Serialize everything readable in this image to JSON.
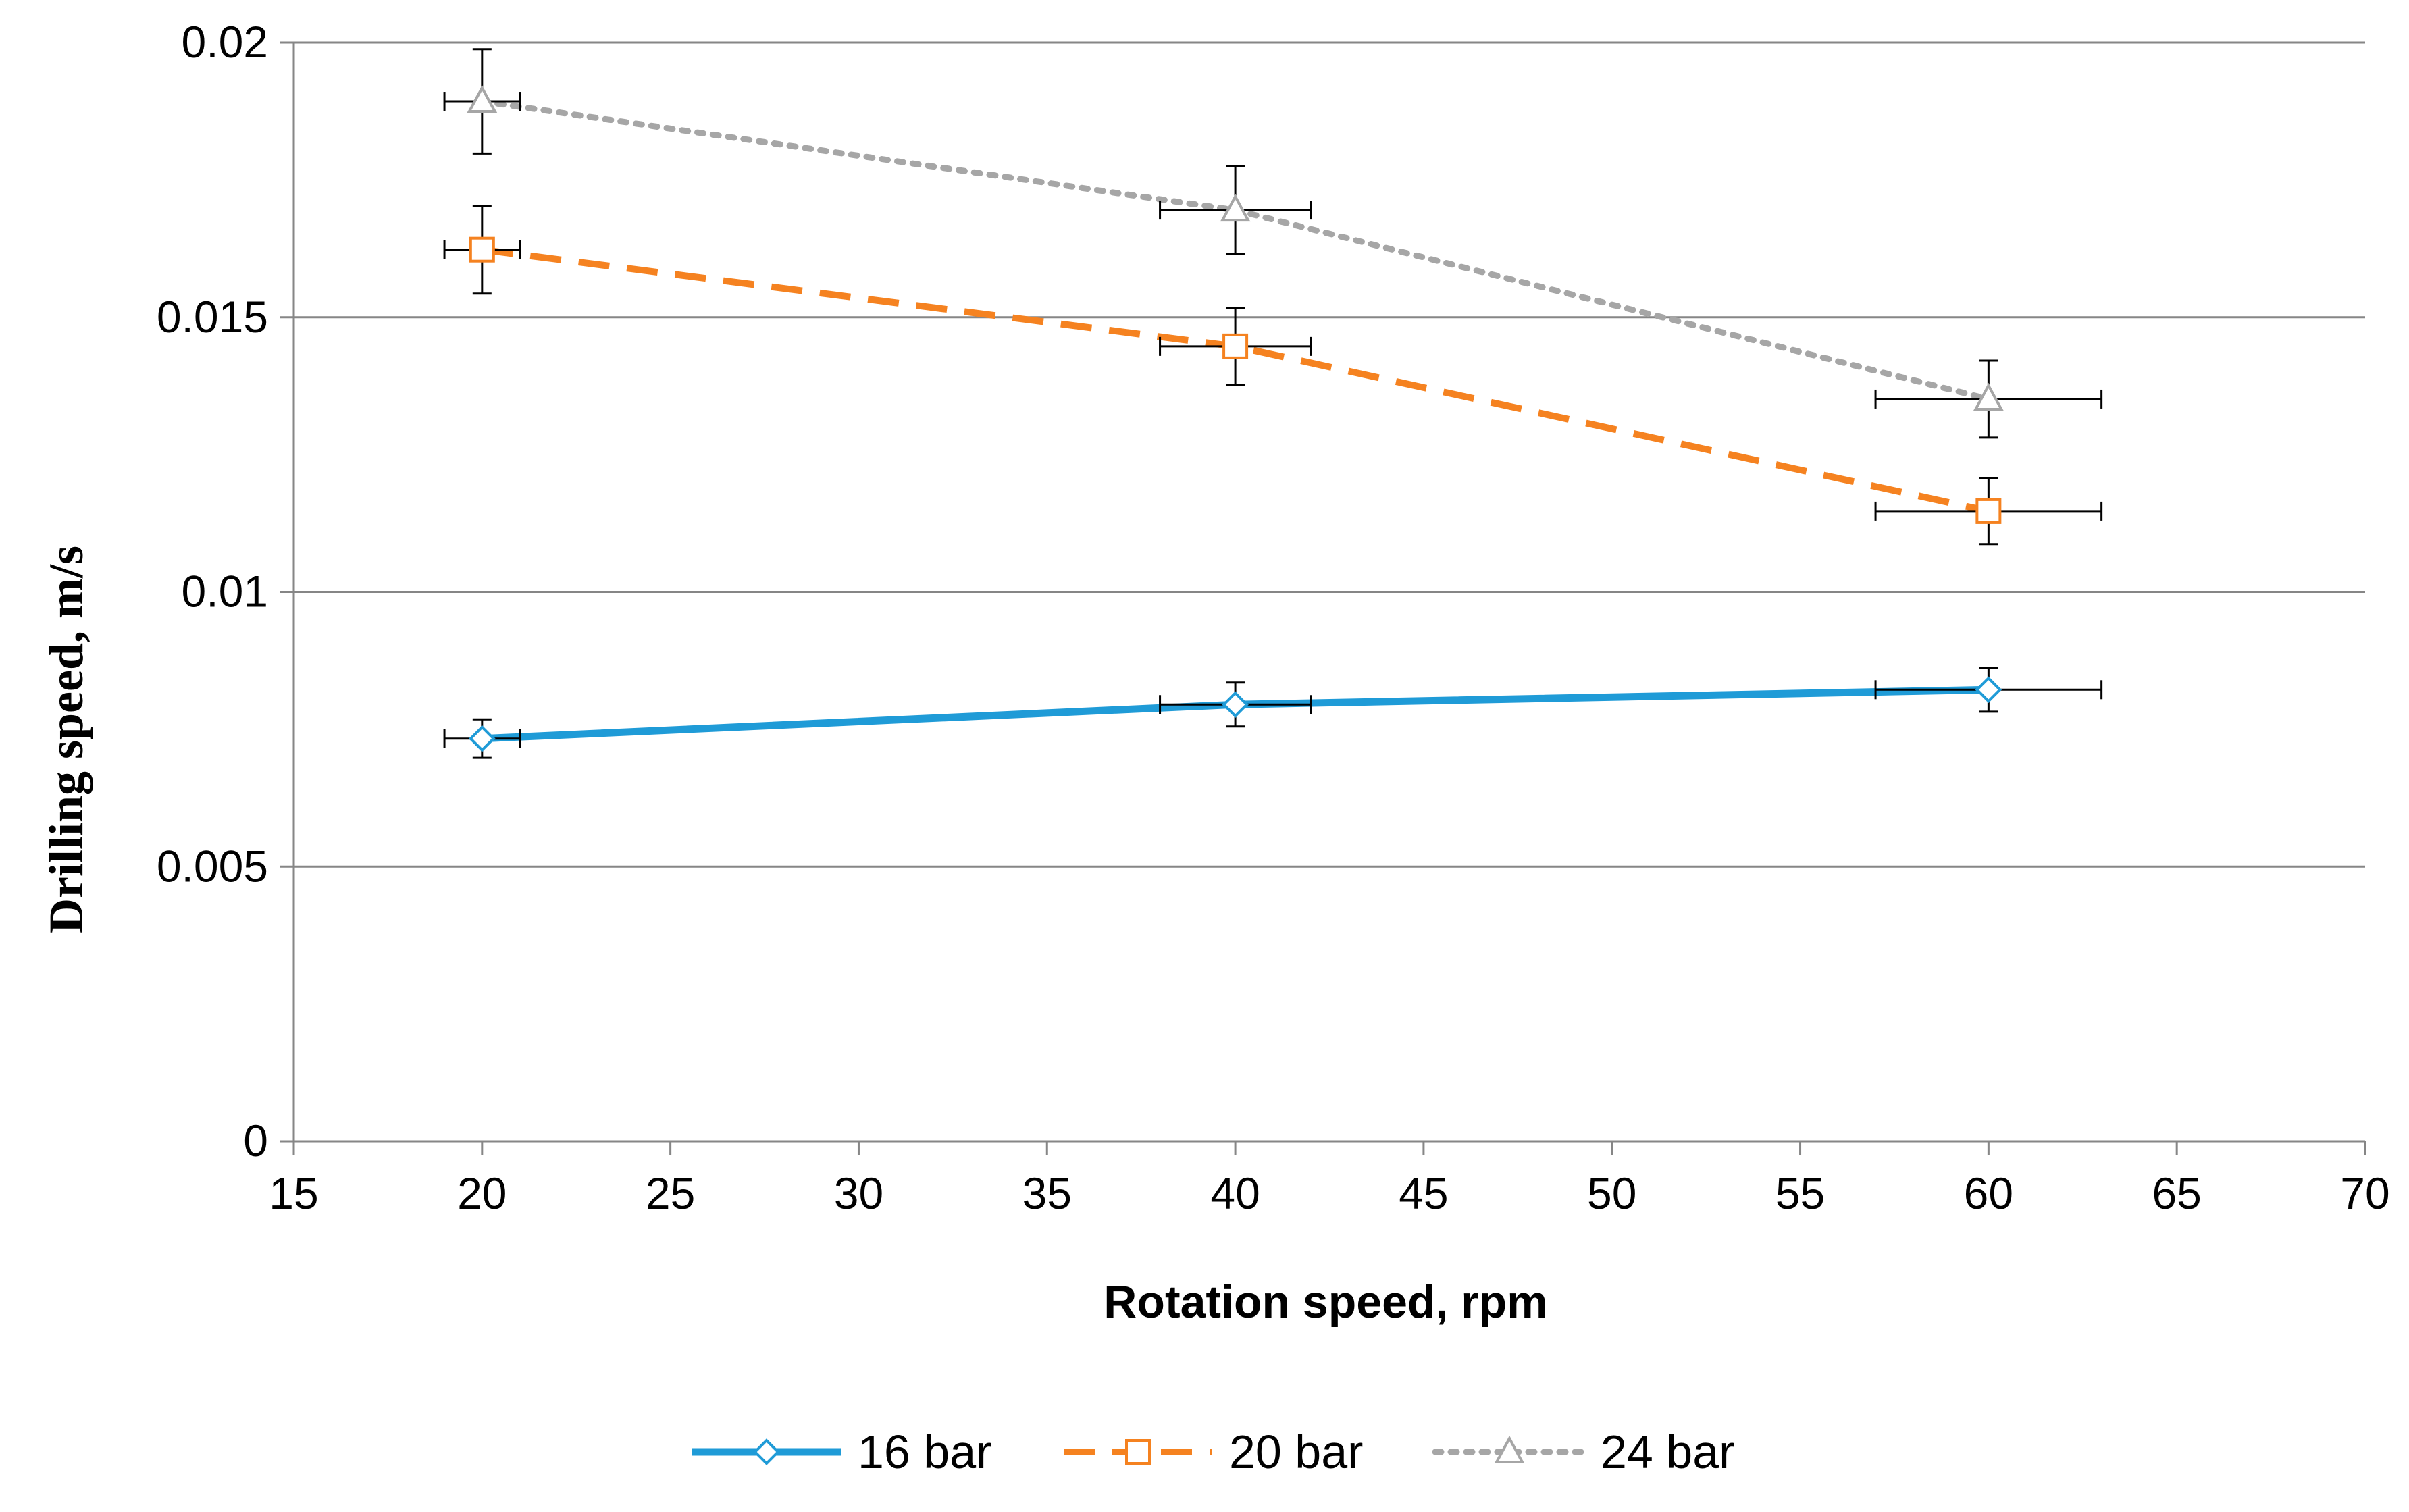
{
  "chart_data": {
    "type": "line",
    "title": "",
    "xlabel": "Rotation speed, rpm",
    "ylabel": "Drilling speed, m/s",
    "xlim": [
      15,
      70
    ],
    "ylim": [
      0,
      0.02
    ],
    "xticks": [
      15,
      20,
      25,
      30,
      35,
      40,
      45,
      50,
      55,
      60,
      65,
      70
    ],
    "yticks": [
      0,
      0.005,
      0.01,
      0.015,
      0.02
    ],
    "xtick_labels": [
      "15",
      "20",
      "25",
      "30",
      "35",
      "40",
      "45",
      "50",
      "55",
      "60",
      "65",
      "70"
    ],
    "ytick_labels": [
      "0",
      "0.005",
      "0.01",
      "0.015",
      "0.02"
    ],
    "grid": "horizontal",
    "legend_position": "bottom",
    "series": [
      {
        "name": "16 bar",
        "color": "#1f9bd7",
        "line_style": "solid",
        "marker": "diamond",
        "x": [
          20,
          40,
          60
        ],
        "y": [
          0.00733,
          0.00795,
          0.00822
        ],
        "y_err": [
          0.00035,
          0.0004,
          0.0004
        ],
        "x_err": [
          1,
          2,
          3
        ]
      },
      {
        "name": "20 bar",
        "color": "#f58220",
        "line_style": "dashed",
        "marker": "square",
        "x": [
          20,
          40,
          60
        ],
        "y": [
          0.01623,
          0.01447,
          0.01147
        ],
        "y_err": [
          0.0008,
          0.0007,
          0.0006
        ],
        "x_err": [
          1,
          2,
          3
        ]
      },
      {
        "name": "24 bar",
        "color": "#a6a6a6",
        "line_style": "dotted",
        "marker": "triangle",
        "x": [
          20,
          40,
          60
        ],
        "y": [
          0.01893,
          0.01695,
          0.01351
        ],
        "y_err": [
          0.00095,
          0.0008,
          0.0007
        ],
        "x_err": [
          1,
          2,
          3
        ]
      }
    ],
    "errorbar_color": "#000000",
    "axis_color": "#868686",
    "grid_color": "#868686"
  }
}
